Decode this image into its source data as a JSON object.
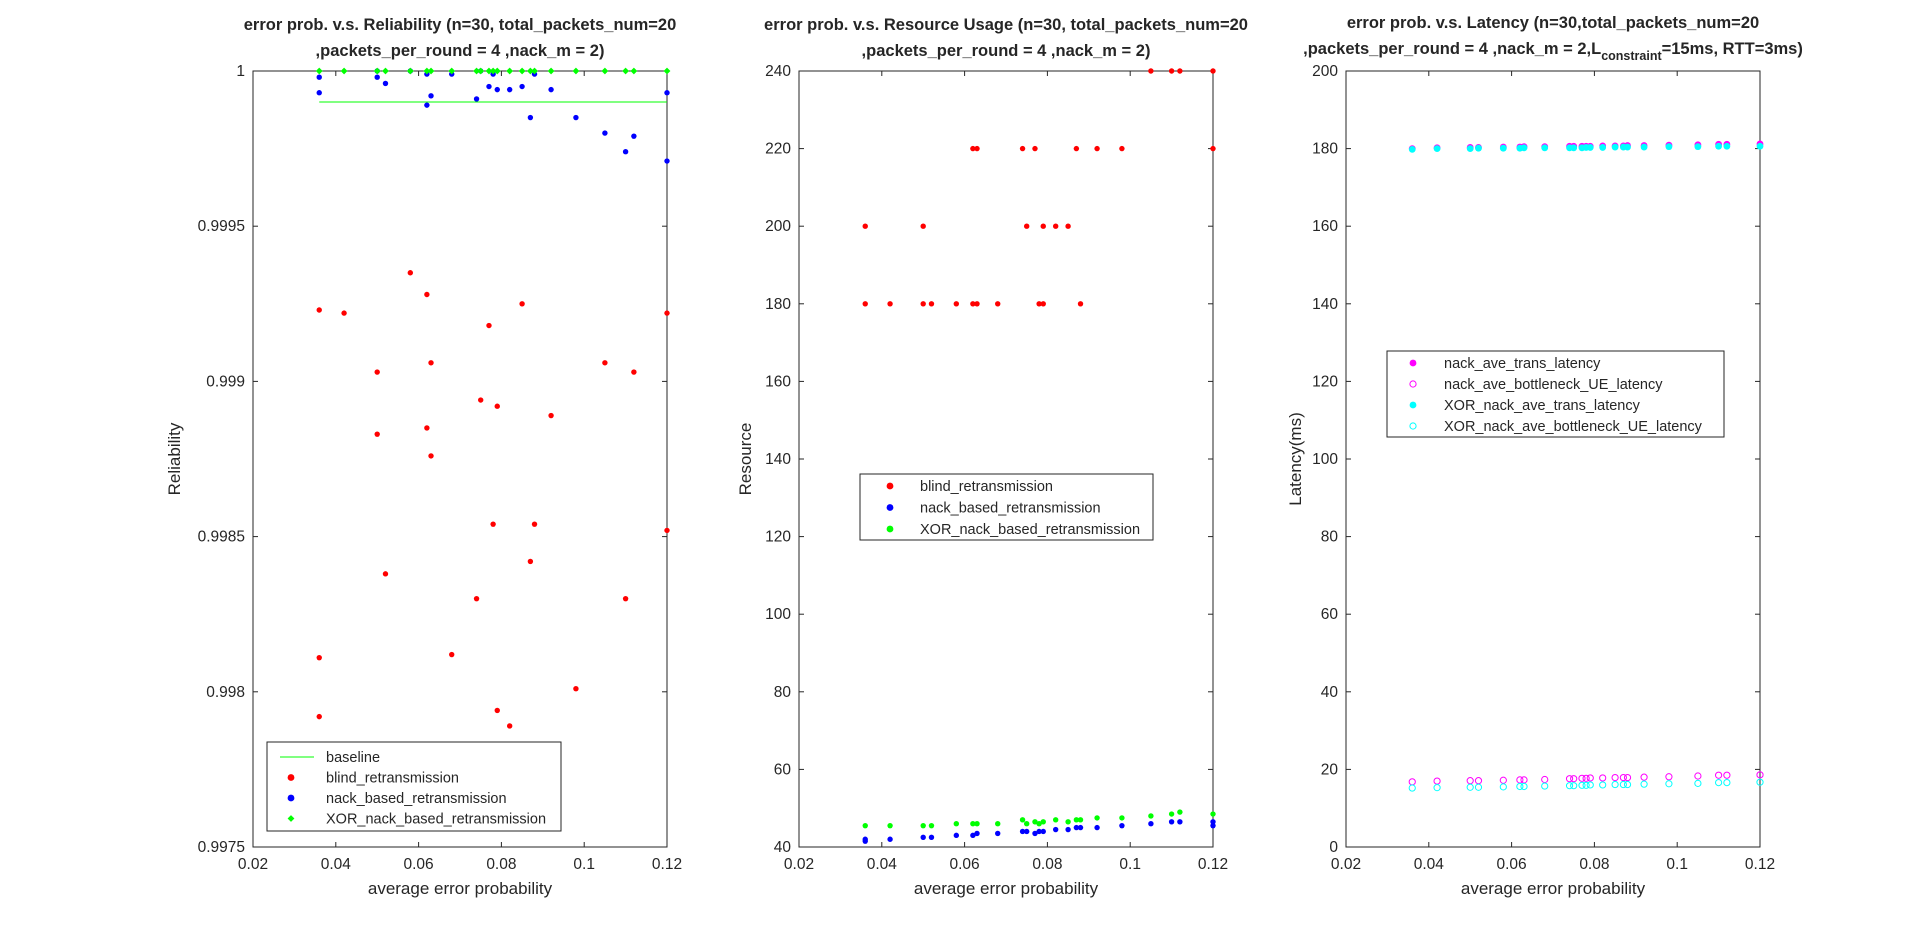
{
  "chart_data": [
    {
      "type": "scatter",
      "title_lines": [
        "error prob. v.s. Reliability (n=30, total_packets_num=20",
        ",packets_per_round = 4 ,nack_m = 2)"
      ],
      "xlabel": "average error probability",
      "ylabel": "Reliability",
      "xlim": [
        0.02,
        0.12
      ],
      "ylim": [
        0.9975,
        1
      ],
      "xticks": [
        "0.02",
        "0.04",
        "0.06",
        "0.08",
        "0.1",
        "0.12"
      ],
      "yticks": [
        "0.9975",
        "0.998",
        "0.9985",
        "0.999",
        "0.9995",
        "1"
      ],
      "legend_position": "bottom-left",
      "series": [
        {
          "name": "baseline",
          "kind": "line",
          "color": "#00ff00",
          "x": [
            0.036,
            0.12
          ],
          "y": [
            0.9999,
            0.9999
          ]
        },
        {
          "name": "blind_retransmission",
          "kind": "dot",
          "color": "#ff0000",
          "x": [
            0.036,
            0.036,
            0.036,
            0.042,
            0.05,
            0.05,
            0.052,
            0.058,
            0.062,
            0.062,
            0.063,
            0.063,
            0.068,
            0.074,
            0.075,
            0.077,
            0.078,
            0.079,
            0.079,
            0.082,
            0.085,
            0.087,
            0.088,
            0.092,
            0.098,
            0.105,
            0.11,
            0.112,
            0.12,
            0.12
          ],
          "y": [
            0.99923,
            0.99811,
            0.99792,
            0.99922,
            0.99903,
            0.99883,
            0.99838,
            0.99935,
            0.99928,
            0.99885,
            0.99876,
            0.99906,
            0.99812,
            0.9983,
            0.99894,
            0.99918,
            0.99854,
            0.99892,
            0.99794,
            0.99789,
            0.99925,
            0.99842,
            0.99854,
            0.99889,
            0.99801,
            0.99906,
            0.9983,
            0.99903,
            0.99852,
            0.99922
          ]
        },
        {
          "name": "nack_based_retransmission",
          "kind": "dot",
          "color": "#0000ff",
          "x": [
            0.036,
            0.036,
            0.05,
            0.05,
            0.052,
            0.058,
            0.062,
            0.062,
            0.063,
            0.068,
            0.074,
            0.075,
            0.077,
            0.078,
            0.079,
            0.082,
            0.085,
            0.087,
            0.088,
            0.092,
            0.098,
            0.105,
            0.11,
            0.112,
            0.12,
            0.12
          ],
          "y": [
            0.99993,
            0.99998,
            1.0,
            0.99998,
            0.99996,
            1.0,
            0.99989,
            0.99999,
            0.99992,
            0.99999,
            0.99991,
            1.0,
            0.99995,
            0.99999,
            0.99994,
            0.99994,
            0.99995,
            0.99985,
            0.99999,
            0.99994,
            0.99985,
            0.9998,
            0.99974,
            0.99979,
            0.99993,
            0.99971
          ]
        },
        {
          "name": "XOR_nack_based_retransmission",
          "kind": "diamond",
          "color": "#00ff00",
          "x": [
            0.036,
            0.042,
            0.05,
            0.052,
            0.058,
            0.062,
            0.063,
            0.068,
            0.074,
            0.075,
            0.077,
            0.078,
            0.079,
            0.082,
            0.085,
            0.087,
            0.088,
            0.092,
            0.098,
            0.105,
            0.11,
            0.112,
            0.12
          ],
          "y": [
            1,
            1,
            1,
            1,
            1,
            1,
            1,
            1,
            1,
            1,
            1,
            1,
            1,
            1,
            1,
            1,
            1,
            1,
            1,
            1,
            1,
            1,
            1
          ]
        }
      ]
    },
    {
      "type": "scatter",
      "title_lines": [
        "error prob. v.s. Resource Usage (n=30, total_packets_num=20",
        ",packets_per_round = 4 ,nack_m = 2)"
      ],
      "xlabel": "average error probability",
      "ylabel": "Resource",
      "xlim": [
        0.02,
        0.12
      ],
      "ylim": [
        40,
        240
      ],
      "xticks": [
        "0.02",
        "0.04",
        "0.06",
        "0.08",
        "0.1",
        "0.12"
      ],
      "yticks": [
        "40",
        "60",
        "80",
        "100",
        "120",
        "140",
        "160",
        "180",
        "200",
        "220",
        "240"
      ],
      "legend_position": "center-left",
      "series": [
        {
          "name": "blind_retransmission",
          "kind": "dot",
          "color": "#ff0000",
          "x": [
            0.036,
            0.036,
            0.042,
            0.05,
            0.05,
            0.052,
            0.058,
            0.062,
            0.062,
            0.063,
            0.063,
            0.068,
            0.074,
            0.075,
            0.077,
            0.078,
            0.079,
            0.079,
            0.082,
            0.085,
            0.087,
            0.088,
            0.092,
            0.098,
            0.105,
            0.11,
            0.112,
            0.12,
            0.12
          ],
          "y": [
            200,
            180,
            180,
            200,
            180,
            180,
            180,
            180,
            220,
            220,
            180,
            180,
            220,
            200,
            220,
            180,
            180,
            200,
            200,
            200,
            220,
            180,
            220,
            220,
            240,
            240,
            240,
            240,
            220
          ]
        },
        {
          "name": "nack_based_retransmission",
          "kind": "dot",
          "color": "#0000ff",
          "x": [
            0.036,
            0.036,
            0.042,
            0.05,
            0.052,
            0.058,
            0.062,
            0.063,
            0.068,
            0.074,
            0.075,
            0.077,
            0.078,
            0.079,
            0.082,
            0.085,
            0.087,
            0.088,
            0.092,
            0.098,
            0.105,
            0.11,
            0.112,
            0.12,
            0.12
          ],
          "y": [
            42,
            41.5,
            42,
            42.5,
            42.5,
            43,
            43,
            43.5,
            43.5,
            44,
            44,
            43.5,
            44,
            44,
            44.5,
            44.5,
            45,
            45,
            45,
            45.5,
            46,
            46.5,
            46.5,
            46.5,
            45.5
          ]
        },
        {
          "name": "XOR_nack_based_retransmission",
          "kind": "dot",
          "color": "#00ff00",
          "x": [
            0.036,
            0.042,
            0.05,
            0.052,
            0.058,
            0.062,
            0.063,
            0.068,
            0.074,
            0.075,
            0.077,
            0.078,
            0.079,
            0.082,
            0.085,
            0.087,
            0.088,
            0.092,
            0.098,
            0.105,
            0.11,
            0.112,
            0.12
          ],
          "y": [
            45.5,
            45.5,
            45.5,
            45.5,
            46,
            46,
            46,
            46,
            47,
            46,
            46.5,
            46,
            46.5,
            47,
            46.5,
            47,
            47,
            47.5,
            47.5,
            48,
            48.5,
            49,
            48.5
          ]
        }
      ]
    },
    {
      "type": "scatter",
      "title_lines": [
        "error prob. v.s. Latency (n=30,total_packets_num=20"
      ],
      "title_line2": {
        "before": ",packets_per_round = 4 ,nack_m = 2,L",
        "sub": "constraint",
        "after": "=15ms, RTT=3ms)"
      },
      "xlabel": "average error probability",
      "ylabel": "Latency(ms)",
      "xlim": [
        0.02,
        0.12
      ],
      "ylim": [
        0,
        200
      ],
      "xticks": [
        "0.02",
        "0.04",
        "0.06",
        "0.08",
        "0.1",
        "0.12"
      ],
      "yticks": [
        "0",
        "20",
        "40",
        "60",
        "80",
        "100",
        "120",
        "140",
        "160",
        "180",
        "200"
      ],
      "legend_position": "upper-left",
      "series": [
        {
          "name": "nack_ave_trans_latency",
          "kind": "filled",
          "color": "#ff00ff",
          "x": [
            0.036,
            0.042,
            0.05,
            0.052,
            0.058,
            0.062,
            0.063,
            0.068,
            0.074,
            0.075,
            0.077,
            0.078,
            0.079,
            0.082,
            0.085,
            0.087,
            0.088,
            0.092,
            0.098,
            0.105,
            0.11,
            0.112,
            0.12
          ],
          "y": [
            180,
            180.2,
            180.3,
            180.3,
            180.4,
            180.4,
            180.5,
            180.5,
            180.6,
            180.6,
            180.6,
            180.6,
            180.6,
            180.7,
            180.7,
            180.7,
            180.8,
            180.8,
            180.9,
            181,
            181.1,
            181.1,
            181.2
          ]
        },
        {
          "name": " nack_ave_bottleneck_UE_latency",
          "kind": "open",
          "color": "#ff00ff",
          "x": [
            0.036,
            0.042,
            0.05,
            0.052,
            0.058,
            0.062,
            0.063,
            0.068,
            0.074,
            0.075,
            0.077,
            0.078,
            0.079,
            0.082,
            0.085,
            0.087,
            0.088,
            0.092,
            0.098,
            0.105,
            0.11,
            0.112,
            0.12
          ],
          "y": [
            16.8,
            17,
            17.1,
            17.1,
            17.2,
            17.3,
            17.3,
            17.4,
            17.6,
            17.6,
            17.7,
            17.7,
            17.8,
            17.8,
            17.9,
            17.9,
            17.9,
            18,
            18.1,
            18.3,
            18.5,
            18.5,
            18.6
          ]
        },
        {
          "name": "XOR_nack_ave_trans_latency",
          "kind": "filled",
          "color": "#00ffff",
          "x": [
            0.036,
            0.042,
            0.05,
            0.052,
            0.058,
            0.062,
            0.063,
            0.068,
            0.074,
            0.075,
            0.077,
            0.078,
            0.079,
            0.082,
            0.085,
            0.087,
            0.088,
            0.092,
            0.098,
            0.105,
            0.11,
            0.112,
            0.12
          ],
          "y": [
            179.8,
            180,
            180,
            180.1,
            180.1,
            180.1,
            180.2,
            180.2,
            180.2,
            180.2,
            180.2,
            180.3,
            180.3,
            180.3,
            180.4,
            180.4,
            180.4,
            180.4,
            180.5,
            180.5,
            180.6,
            180.6,
            180.6
          ]
        },
        {
          "name": " XOR_nack_ave_bottleneck_UE_latency",
          "kind": "open",
          "color": "#00ffff",
          "x": [
            0.036,
            0.042,
            0.05,
            0.052,
            0.058,
            0.062,
            0.063,
            0.068,
            0.074,
            0.075,
            0.077,
            0.078,
            0.079,
            0.082,
            0.085,
            0.087,
            0.088,
            0.092,
            0.098,
            0.105,
            0.11,
            0.112,
            0.12
          ],
          "y": [
            15.2,
            15.3,
            15.4,
            15.4,
            15.5,
            15.6,
            15.6,
            15.7,
            15.8,
            15.8,
            15.9,
            15.9,
            16,
            16,
            16.1,
            16.1,
            16.1,
            16.2,
            16.3,
            16.4,
            16.6,
            16.6,
            16.7
          ]
        }
      ]
    }
  ]
}
